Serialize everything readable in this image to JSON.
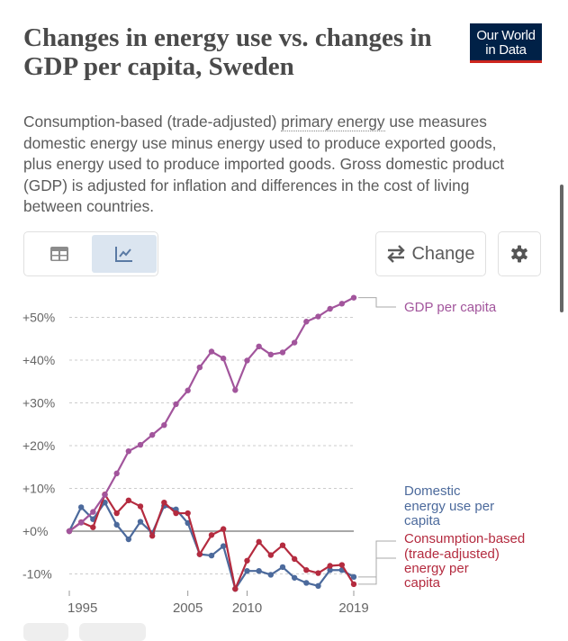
{
  "header": {
    "title": "Changes in energy use vs. changes in GDP per capita, Sweden",
    "logo_line1": "Our World",
    "logo_line2": "in Data",
    "subtitle_pre": "Consumption-based (trade-adjusted) ",
    "subtitle_link": "primary energy",
    "subtitle_post": " use measures domestic energy use minus energy used to produce exported goods, plus energy used to produce imported goods. Gross domestic product (GDP) is adjusted for inflation and differences in the cost of living between countries."
  },
  "controls": {
    "table_icon": "table-icon",
    "chart_icon": "line-chart-icon",
    "change_label": "Change",
    "change_icon": "swap-arrows-icon",
    "settings_icon": "gear-icon"
  },
  "colors": {
    "gdp": "#a2559c",
    "domestic": "#4c6a9c",
    "consumption": "#b42b3f",
    "grid": "#cccccc",
    "zero": "#8c8c8c"
  },
  "chart_data": {
    "type": "line",
    "title": "Changes in energy use vs. changes in GDP per capita, Sweden",
    "x": [
      1995,
      1996,
      1997,
      1998,
      1999,
      2000,
      2001,
      2002,
      2003,
      2004,
      2005,
      2006,
      2007,
      2008,
      2009,
      2010,
      2011,
      2012,
      2013,
      2014,
      2015,
      2016,
      2017,
      2018,
      2019
    ],
    "y_ticks": [
      -10,
      0,
      10,
      20,
      30,
      40,
      50
    ],
    "y_tick_labels": [
      "-10%",
      "+0%",
      "+10%",
      "+20%",
      "+30%",
      "+40%",
      "+50%"
    ],
    "x_ticks": [
      1995,
      2005,
      2010,
      2019
    ],
    "x_tick_labels": [
      "1995",
      "2005",
      "2010",
      "2019"
    ],
    "ylim": [
      -13.5,
      55
    ],
    "grid": true,
    "legend_placement": "right (inline labels)",
    "series": [
      {
        "name": "GDP per capita",
        "label_lines": [
          "GDP per capita"
        ],
        "color_key": "gdp",
        "values": [
          0,
          2,
          4.5,
          8.5,
          13.5,
          18.7,
          20.2,
          22.5,
          24.8,
          29.7,
          32.9,
          38.3,
          42,
          40.4,
          33,
          39.9,
          43.2,
          41.3,
          41.8,
          44.1,
          49,
          50.2,
          52,
          53.2,
          54.6
        ]
      },
      {
        "name": "Domestic energy use per capita",
        "label_lines": [
          "Domestic",
          "energy use per",
          "capita"
        ],
        "color_key": "domestic",
        "values": [
          0,
          5.6,
          2.8,
          6.7,
          1.5,
          -1.9,
          2.2,
          -0.4,
          5.9,
          5.1,
          1.9,
          -5.4,
          -5.7,
          -3.5,
          -13.5,
          -9.3,
          -9.3,
          -10.2,
          -8.4,
          -10.9,
          -12.1,
          -12.8,
          -9.1,
          -9.1,
          -10.7
        ]
      },
      {
        "name": "Consumption-based (trade-adjusted) energy per capita",
        "label_lines": [
          "Consumption-based",
          "(trade-adjusted)",
          "energy per",
          "capita"
        ],
        "color_key": "consumption",
        "values": [
          0,
          2.1,
          0.9,
          8.6,
          4.2,
          7.2,
          5.8,
          -1.1,
          6.7,
          4.2,
          4.2,
          -5.4,
          -0.9,
          0.5,
          -13.5,
          -6.9,
          -2.5,
          -5.6,
          -3.3,
          -6.5,
          -9.1,
          -9.8,
          -8.1,
          -7.9,
          -12.4
        ]
      }
    ]
  }
}
